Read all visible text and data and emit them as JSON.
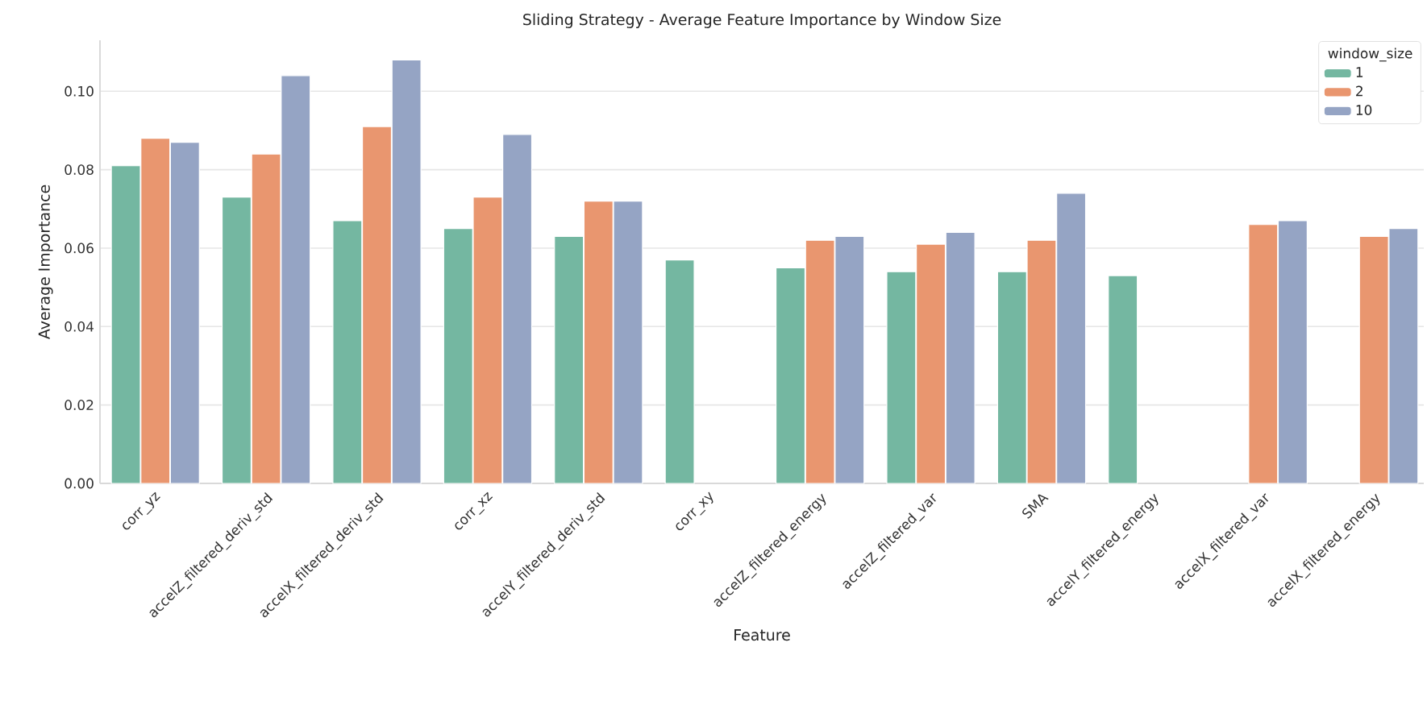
{
  "chart_data": {
    "type": "bar",
    "title": "Sliding Strategy - Average Feature Importance by Window Size",
    "xlabel": "Feature",
    "ylabel": "Average Importance",
    "legend_title": "window_size",
    "categories": [
      "corr_yz",
      "accelZ_filtered_deriv_std",
      "accelX_filtered_deriv_std",
      "corr_xz",
      "accelY_filtered_deriv_std",
      "corr_xy",
      "accelZ_filtered_energy",
      "accelZ_filtered_var",
      "SMA",
      "accelY_filtered_energy",
      "accelX_filtered_var",
      "accelX_filtered_energy"
    ],
    "series": [
      {
        "name": "1",
        "color": "#74b7a1",
        "values": [
          0.081,
          0.073,
          0.067,
          0.065,
          0.063,
          0.057,
          0.055,
          0.054,
          0.054,
          0.053,
          null,
          null
        ]
      },
      {
        "name": "2",
        "color": "#e9966f",
        "values": [
          0.088,
          0.084,
          0.091,
          0.073,
          0.072,
          null,
          0.062,
          0.061,
          0.062,
          null,
          0.066,
          0.063
        ]
      },
      {
        "name": "10",
        "color": "#95a4c4",
        "values": [
          0.087,
          0.104,
          0.108,
          0.089,
          0.072,
          null,
          0.063,
          0.064,
          0.074,
          null,
          0.067,
          0.065
        ]
      }
    ],
    "ylim": [
      0,
      0.113
    ],
    "yticks": [
      {
        "value": 0,
        "label": "0.00"
      },
      {
        "value": 0.02,
        "label": "0.02"
      },
      {
        "value": 0.04,
        "label": "0.04"
      },
      {
        "value": 0.06,
        "label": "0.06"
      },
      {
        "value": 0.08,
        "label": "0.08"
      },
      {
        "value": 0.1,
        "label": "0.10"
      }
    ],
    "grid": "y",
    "legend": "top right"
  }
}
